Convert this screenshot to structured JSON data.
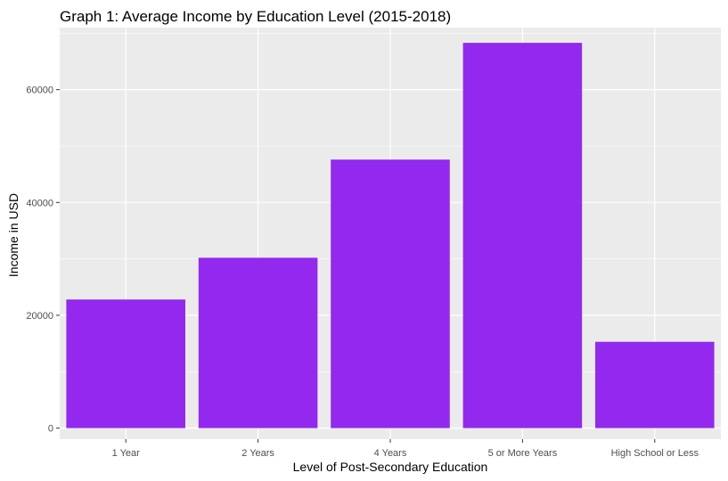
{
  "chart_data": {
    "type": "bar",
    "title": "Graph 1: Average Income by Education Level (2015-2018)",
    "xlabel": "Level of Post-Secondary Education",
    "ylabel": "Income in USD",
    "categories": [
      "1 Year",
      "2 Years",
      "4 Years",
      "5 or More Years",
      "High School or Less"
    ],
    "values": [
      22800,
      30200,
      47600,
      68300,
      15300
    ],
    "ylim": [
      0,
      71000
    ],
    "yticks": [
      0,
      20000,
      40000,
      60000
    ],
    "ytick_labels": [
      "0",
      "20000",
      "40000",
      "60000"
    ],
    "bar_color": "#9329EE",
    "panel_background": "#EBEBEB",
    "grid_color": "#FFFFFF",
    "grid": true,
    "legend": "none"
  }
}
